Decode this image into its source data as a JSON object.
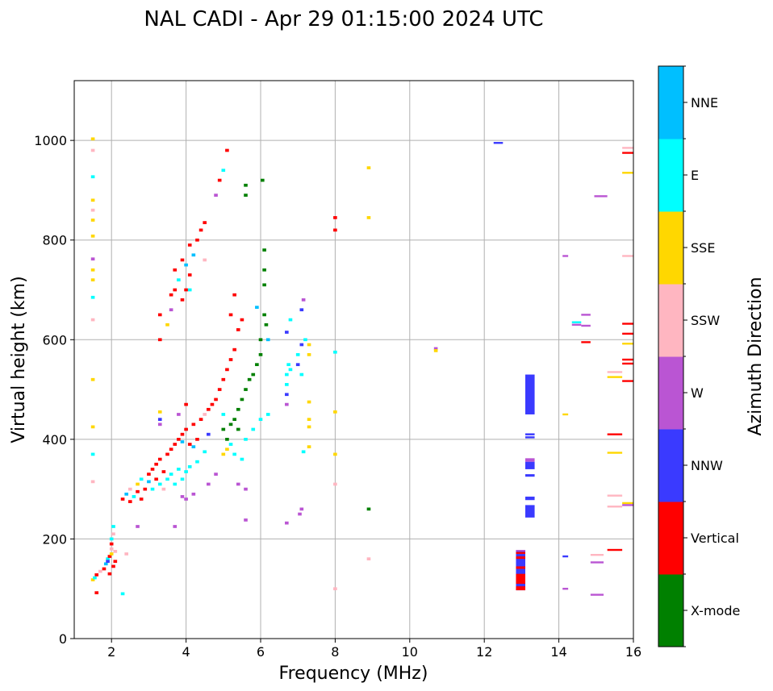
{
  "chart_data": {
    "type": "scatter",
    "title": "NAL CADI - Apr 29 01:15:00 2024 UTC",
    "xlabel": "Frequency (MHz)",
    "ylabel": "Virtual height (km)",
    "xlim": [
      1,
      16
    ],
    "ylim": [
      0,
      1120
    ],
    "xticks": [
      2,
      4,
      6,
      8,
      10,
      12,
      14,
      16
    ],
    "yticks": [
      0,
      200,
      400,
      600,
      800,
      1000
    ],
    "grid": true,
    "colorbar": {
      "label": "Azimuth Direction",
      "categories": [
        {
          "name": "X-mode",
          "color": "#008000"
        },
        {
          "name": "Vertical",
          "color": "#ff0000"
        },
        {
          "name": "NNW",
          "color": "#3a3aff"
        },
        {
          "name": "W",
          "color": "#ba55d3"
        },
        {
          "name": "SSW",
          "color": "#ffb6c1"
        },
        {
          "name": "SSE",
          "color": "#ffd700"
        },
        {
          "name": "E",
          "color": "#00ffff"
        },
        {
          "name": "NNE",
          "color": "#00bfff"
        }
      ]
    },
    "points_format": "[frequency_MHz, height_km, category_index]",
    "points": [
      [
        1.5,
        118,
        5
      ],
      [
        1.55,
        122,
        6
      ],
      [
        1.6,
        128,
        1
      ],
      [
        1.7,
        135,
        4
      ],
      [
        1.8,
        140,
        1
      ],
      [
        1.85,
        150,
        7
      ],
      [
        1.9,
        160,
        6
      ],
      [
        1.95,
        165,
        1
      ],
      [
        2.0,
        170,
        5
      ],
      [
        2.0,
        180,
        4
      ],
      [
        2.05,
        145,
        1
      ],
      [
        2.0,
        190,
        1
      ],
      [
        2.0,
        200,
        6
      ],
      [
        2.05,
        210,
        4
      ],
      [
        2.05,
        225,
        6
      ],
      [
        2.1,
        175,
        4
      ],
      [
        1.95,
        130,
        1
      ],
      [
        1.9,
        155,
        2
      ],
      [
        2.1,
        155,
        1
      ],
      [
        1.6,
        92,
        1
      ],
      [
        2.3,
        90,
        6
      ],
      [
        2.4,
        170,
        4
      ],
      [
        1.5,
        1003,
        5
      ],
      [
        1.5,
        980,
        4
      ],
      [
        1.5,
        927,
        6
      ],
      [
        1.5,
        880,
        5
      ],
      [
        1.5,
        860,
        4
      ],
      [
        1.5,
        840,
        5
      ],
      [
        1.5,
        808,
        5
      ],
      [
        1.5,
        762,
        3
      ],
      [
        1.5,
        740,
        5
      ],
      [
        1.5,
        720,
        5
      ],
      [
        1.5,
        685,
        6
      ],
      [
        1.5,
        640,
        4
      ],
      [
        1.5,
        520,
        5
      ],
      [
        1.5,
        425,
        5
      ],
      [
        1.5,
        370,
        6
      ],
      [
        1.5,
        315,
        4
      ],
      [
        2.3,
        280,
        1
      ],
      [
        2.4,
        290,
        7
      ],
      [
        2.5,
        300,
        4
      ],
      [
        2.5,
        275,
        1
      ],
      [
        2.6,
        285,
        6
      ],
      [
        2.7,
        295,
        1
      ],
      [
        2.7,
        310,
        5
      ],
      [
        2.8,
        280,
        1
      ],
      [
        2.8,
        320,
        6
      ],
      [
        2.9,
        300,
        1
      ],
      [
        3.0,
        315,
        7
      ],
      [
        3.0,
        330,
        1
      ],
      [
        3.1,
        340,
        1
      ],
      [
        3.1,
        300,
        6
      ],
      [
        3.2,
        320,
        1
      ],
      [
        3.2,
        350,
        1
      ],
      [
        3.3,
        310,
        6
      ],
      [
        3.3,
        360,
        1
      ],
      [
        3.4,
        335,
        1
      ],
      [
        3.4,
        300,
        4
      ],
      [
        3.5,
        370,
        1
      ],
      [
        3.5,
        320,
        6
      ],
      [
        3.6,
        380,
        1
      ],
      [
        3.6,
        330,
        6
      ],
      [
        3.7,
        390,
        1
      ],
      [
        3.7,
        310,
        6
      ],
      [
        3.8,
        340,
        6
      ],
      [
        3.8,
        400,
        1
      ],
      [
        3.9,
        320,
        6
      ],
      [
        3.9,
        410,
        1
      ],
      [
        4.0,
        420,
        1
      ],
      [
        4.0,
        335,
        6
      ],
      [
        4.1,
        390,
        1
      ],
      [
        4.1,
        345,
        6
      ],
      [
        4.2,
        430,
        1
      ],
      [
        4.3,
        400,
        1
      ],
      [
        4.3,
        355,
        6
      ],
      [
        4.4,
        440,
        1
      ],
      [
        4.5,
        375,
        6
      ],
      [
        4.5,
        450,
        4
      ],
      [
        4.6,
        410,
        2
      ],
      [
        4.6,
        460,
        1
      ],
      [
        3.9,
        285,
        3
      ],
      [
        4.0,
        280,
        3
      ],
      [
        4.2,
        290,
        3
      ],
      [
        4.6,
        310,
        3
      ],
      [
        4.8,
        330,
        3
      ],
      [
        2.7,
        225,
        3
      ],
      [
        3.7,
        225,
        3
      ],
      [
        3.3,
        455,
        5
      ],
      [
        3.3,
        440,
        2
      ],
      [
        3.3,
        430,
        3
      ],
      [
        4.0,
        470,
        1
      ],
      [
        3.8,
        450,
        3
      ],
      [
        3.9,
        395,
        7
      ],
      [
        4.2,
        385,
        7
      ],
      [
        3.3,
        600,
        1
      ],
      [
        3.3,
        650,
        1
      ],
      [
        3.5,
        630,
        5
      ],
      [
        3.6,
        690,
        1
      ],
      [
        3.7,
        700,
        1
      ],
      [
        3.7,
        740,
        1
      ],
      [
        3.8,
        720,
        6
      ],
      [
        3.9,
        760,
        1
      ],
      [
        4.0,
        700,
        1
      ],
      [
        4.0,
        750,
        7
      ],
      [
        4.1,
        790,
        1
      ],
      [
        4.1,
        730,
        1
      ],
      [
        4.2,
        770,
        7
      ],
      [
        4.3,
        800,
        1
      ],
      [
        4.4,
        820,
        1
      ],
      [
        4.5,
        835,
        1
      ],
      [
        4.5,
        760,
        4
      ],
      [
        3.9,
        680,
        1
      ],
      [
        3.6,
        660,
        3
      ],
      [
        4.1,
        700,
        6
      ],
      [
        4.9,
        920,
        1
      ],
      [
        5.1,
        980,
        1
      ],
      [
        5.0,
        940,
        6
      ],
      [
        4.8,
        890,
        3
      ],
      [
        4.7,
        470,
        1
      ],
      [
        4.8,
        480,
        1
      ],
      [
        4.9,
        500,
        1
      ],
      [
        5.0,
        520,
        1
      ],
      [
        5.1,
        540,
        1
      ],
      [
        5.2,
        560,
        1
      ],
      [
        5.3,
        580,
        1
      ],
      [
        5.0,
        450,
        6
      ],
      [
        5.0,
        420,
        0
      ],
      [
        5.1,
        400,
        0
      ],
      [
        5.2,
        430,
        0
      ],
      [
        5.3,
        440,
        0
      ],
      [
        5.4,
        420,
        0
      ],
      [
        5.4,
        460,
        0
      ],
      [
        5.5,
        480,
        0
      ],
      [
        5.6,
        500,
        0
      ],
      [
        5.7,
        520,
        0
      ],
      [
        5.8,
        530,
        0
      ],
      [
        5.9,
        550,
        0
      ],
      [
        6.0,
        570,
        0
      ],
      [
        5.2,
        390,
        6
      ],
      [
        5.3,
        370,
        6
      ],
      [
        5.5,
        360,
        6
      ],
      [
        5.6,
        400,
        6
      ],
      [
        5.8,
        420,
        6
      ],
      [
        6.0,
        440,
        6
      ],
      [
        6.2,
        450,
        6
      ],
      [
        5.4,
        620,
        1
      ],
      [
        5.5,
        640,
        1
      ],
      [
        5.2,
        650,
        1
      ],
      [
        5.3,
        690,
        1
      ],
      [
        5.6,
        910,
        0
      ],
      [
        5.6,
        890,
        0
      ],
      [
        6.05,
        920,
        0
      ],
      [
        6.1,
        780,
        0
      ],
      [
        6.1,
        740,
        0
      ],
      [
        6.1,
        710,
        0
      ],
      [
        6.1,
        650,
        0
      ],
      [
        6.15,
        630,
        0
      ],
      [
        6.0,
        600,
        0
      ],
      [
        6.2,
        600,
        7
      ],
      [
        5.9,
        665,
        7
      ],
      [
        5.0,
        370,
        5
      ],
      [
        5.1,
        380,
        5
      ],
      [
        5.6,
        300,
        3
      ],
      [
        5.4,
        310,
        3
      ],
      [
        5.6,
        238,
        3
      ],
      [
        6.7,
        530,
        6
      ],
      [
        6.7,
        510,
        6
      ],
      [
        6.7,
        490,
        2
      ],
      [
        6.75,
        550,
        6
      ],
      [
        6.8,
        540,
        6
      ],
      [
        6.7,
        470,
        3
      ],
      [
        6.8,
        640,
        6
      ],
      [
        6.7,
        615,
        2
      ],
      [
        7.0,
        570,
        6
      ],
      [
        7.0,
        550,
        2
      ],
      [
        7.1,
        590,
        2
      ],
      [
        7.1,
        530,
        6
      ],
      [
        7.2,
        600,
        6
      ],
      [
        7.15,
        680,
        3
      ],
      [
        7.1,
        660,
        2
      ],
      [
        7.3,
        590,
        5
      ],
      [
        7.3,
        570,
        5
      ],
      [
        7.3,
        475,
        5
      ],
      [
        7.3,
        440,
        5
      ],
      [
        7.3,
        425,
        5
      ],
      [
        7.3,
        385,
        5
      ],
      [
        7.15,
        375,
        6
      ],
      [
        7.1,
        260,
        3
      ],
      [
        6.7,
        232,
        3
      ],
      [
        7.05,
        250,
        3
      ],
      [
        8.0,
        845,
        1
      ],
      [
        8.0,
        820,
        1
      ],
      [
        8.0,
        575,
        6
      ],
      [
        8.0,
        455,
        5
      ],
      [
        8.0,
        370,
        5
      ],
      [
        8.0,
        310,
        4
      ],
      [
        8.0,
        100,
        4
      ],
      [
        8.9,
        945,
        5
      ],
      [
        8.9,
        845,
        5
      ],
      [
        8.9,
        260,
        0
      ],
      [
        8.9,
        160,
        4
      ],
      [
        10.7,
        582,
        3
      ],
      [
        10.7,
        578,
        5
      ]
    ],
    "segments_format": "[freq_start_MHz, freq_end_MHz, height_km, category_index]",
    "segments": [
      [
        12.25,
        12.5,
        995,
        2
      ],
      [
        14.1,
        14.25,
        768,
        3
      ],
      [
        14.95,
        15.3,
        888,
        3
      ],
      [
        15.7,
        16,
        985,
        4
      ],
      [
        15.7,
        16,
        975,
        1
      ],
      [
        15.7,
        16,
        935,
        5
      ],
      [
        15.7,
        16,
        768,
        4
      ],
      [
        14.1,
        14.25,
        450,
        5
      ],
      [
        14.35,
        14.6,
        635,
        6
      ],
      [
        14.35,
        14.6,
        630,
        3
      ],
      [
        14.6,
        14.85,
        650,
        3
      ],
      [
        14.6,
        14.85,
        628,
        3
      ],
      [
        14.6,
        14.85,
        595,
        1
      ],
      [
        15.7,
        16,
        632,
        1
      ],
      [
        15.7,
        16,
        612,
        1
      ],
      [
        15.7,
        16,
        592,
        5
      ],
      [
        15.7,
        16,
        560,
        1
      ],
      [
        15.7,
        16,
        552,
        1
      ],
      [
        15.7,
        16,
        517,
        1
      ],
      [
        15.3,
        15.7,
        535,
        4
      ],
      [
        15.3,
        15.7,
        525,
        5
      ],
      [
        15.3,
        15.7,
        410,
        1
      ],
      [
        15.3,
        15.7,
        373,
        5
      ],
      [
        15.3,
        15.7,
        287,
        4
      ],
      [
        15.3,
        15.7,
        265,
        4
      ],
      [
        15.7,
        16,
        272,
        5
      ],
      [
        15.7,
        16,
        268,
        3
      ],
      [
        15.3,
        15.7,
        178,
        1
      ],
      [
        14.1,
        14.25,
        165,
        2
      ],
      [
        14.85,
        15.2,
        168,
        4
      ],
      [
        14.85,
        15.2,
        153,
        3
      ],
      [
        14.1,
        14.25,
        100,
        3
      ],
      [
        14.85,
        15.2,
        88,
        3
      ]
    ],
    "blocks_format": "[freq_start_MHz, freq_end_MHz, height_low_km, height_high_km, category_index]",
    "blocks": [
      [
        13.1,
        13.35,
        450,
        530,
        2
      ],
      [
        13.1,
        13.35,
        402,
        406,
        2
      ],
      [
        13.1,
        13.35,
        408,
        412,
        2
      ],
      [
        13.1,
        13.35,
        340,
        355,
        2
      ],
      [
        13.1,
        13.35,
        355,
        362,
        3
      ],
      [
        13.1,
        13.35,
        325,
        330,
        2
      ],
      [
        13.1,
        13.35,
        278,
        285,
        2
      ],
      [
        13.1,
        13.35,
        243,
        268,
        2
      ],
      [
        12.85,
        13.1,
        97,
        178,
        2
      ],
      [
        12.85,
        13.1,
        97,
        105,
        1
      ],
      [
        12.85,
        13.1,
        110,
        130,
        1
      ],
      [
        12.85,
        13.1,
        140,
        145,
        1
      ],
      [
        12.85,
        13.1,
        160,
        165,
        1
      ],
      [
        12.85,
        13.1,
        170,
        174,
        1
      ],
      [
        12.85,
        13.1,
        175,
        178,
        3
      ]
    ]
  }
}
